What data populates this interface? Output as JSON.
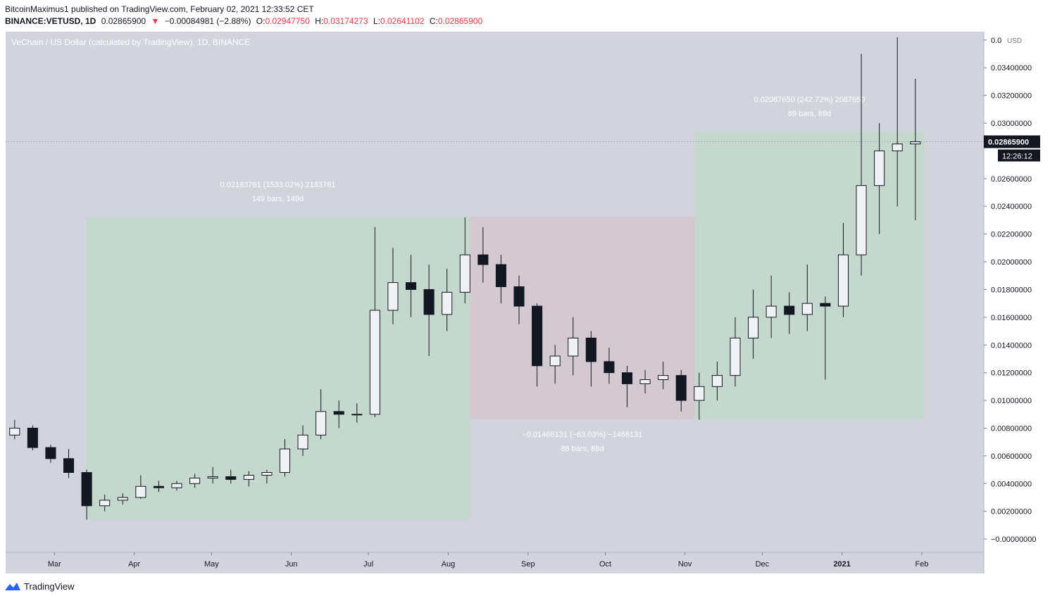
{
  "header": {
    "line1": "BitcoinMaximus1 published on TradingView.com, February 02, 2021 12:33:52 CET",
    "symbol": "BINANCE:VETUSD, 1D",
    "last": "0.02865900",
    "arrow": "▼",
    "change": "−0.00084981 (−2.88%)",
    "o_label": "O:",
    "o": "0.02947750",
    "h_label": "H:",
    "h": "0.03174273",
    "l_label": "L:",
    "l": "0.02641102",
    "c_label": "C:",
    "c": "0.02865900"
  },
  "footer": "TradingView",
  "chart_data": {
    "type": "candlestick",
    "title": "VeChain / US Dollar (calculated by TradingView), 1D, BINANCE",
    "currency": "USD",
    "xlim": [
      -0.5,
      53.8
    ],
    "xticks": [
      {
        "value": 2.21,
        "label": "Mar"
      },
      {
        "value": 6.64,
        "label": "Apr"
      },
      {
        "value": 10.93,
        "label": "May"
      },
      {
        "value": 15.36,
        "label": "Jun"
      },
      {
        "value": 19.64,
        "label": "Jul"
      },
      {
        "value": 24.07,
        "label": "Aug"
      },
      {
        "value": 28.5,
        "label": "Sep"
      },
      {
        "value": 32.79,
        "label": "Oct"
      },
      {
        "value": 37.21,
        "label": "Nov"
      },
      {
        "value": 41.5,
        "label": "Dec"
      },
      {
        "value": 45.93,
        "label": "2021"
      },
      {
        "value": 50.36,
        "label": "Feb"
      }
    ],
    "ylim": [
      -0.00096,
      0.0366
    ],
    "yticks": [
      {
        "value": 0,
        "label": "−0.00000000"
      },
      {
        "value": 0.002,
        "label": "0.00200000"
      },
      {
        "value": 0.004,
        "label": "0.00400000"
      },
      {
        "value": 0.006,
        "label": "0.00600000"
      },
      {
        "value": 0.008,
        "label": "0.00800000"
      },
      {
        "value": 0.01,
        "label": "0.01000000"
      },
      {
        "value": 0.012,
        "label": "0.01200000"
      },
      {
        "value": 0.014,
        "label": "0.01400000"
      },
      {
        "value": 0.016,
        "label": "0.01600000"
      },
      {
        "value": 0.018,
        "label": "0.01800000"
      },
      {
        "value": 0.02,
        "label": "0.02000000"
      },
      {
        "value": 0.022,
        "label": "0.02200000"
      },
      {
        "value": 0.024,
        "label": "0.02400000"
      },
      {
        "value": 0.026,
        "label": "0.02600000"
      },
      {
        "value": 0.03,
        "label": "0.03000000"
      },
      {
        "value": 0.032,
        "label": "0.03200000"
      },
      {
        "value": 0.034,
        "label": "0.03400000"
      },
      {
        "value": 0.036,
        "label": "0.0"
      }
    ],
    "up_color": "#f0f1f4",
    "down_color": "#131722",
    "open": [
      0.0075,
      0.008,
      0.0066,
      0.0058,
      0.0048,
      0.0024,
      0.0028,
      0.003,
      0.0038,
      0.0037,
      0.004,
      0.0044,
      0.0045,
      0.0043,
      0.0046,
      0.0048,
      0.0065,
      0.0075,
      0.0092,
      0.009,
      0.009,
      0.0165,
      0.0185,
      0.018,
      0.0162,
      0.0178,
      0.0205,
      0.0198,
      0.0182,
      0.0168,
      0.0125,
      0.0132,
      0.0145,
      0.0128,
      0.012,
      0.0112,
      0.0115,
      0.0118,
      0.01,
      0.011,
      0.0118,
      0.0145,
      0.016,
      0.0168,
      0.0162,
      0.017,
      0.0168,
      0.0205,
      0.0255,
      0.028,
      0.0285
    ],
    "high": [
      0.0086,
      0.0082,
      0.0068,
      0.0065,
      0.005,
      0.0032,
      0.0033,
      0.0046,
      0.0042,
      0.0042,
      0.0047,
      0.0052,
      0.005,
      0.0049,
      0.005,
      0.0072,
      0.0082,
      0.0108,
      0.01,
      0.0098,
      0.0225,
      0.021,
      0.0205,
      0.0198,
      0.0195,
      0.0232,
      0.0225,
      0.0205,
      0.019,
      0.017,
      0.014,
      0.016,
      0.015,
      0.0138,
      0.0125,
      0.0122,
      0.0128,
      0.0122,
      0.012,
      0.0128,
      0.016,
      0.018,
      0.019,
      0.0178,
      0.0198,
      0.0175,
      0.0228,
      0.035,
      0.03,
      0.0362,
      0.0332
    ],
    "low": [
      0.0072,
      0.0064,
      0.0055,
      0.0044,
      0.0014,
      0.002,
      0.0025,
      0.0029,
      0.0034,
      0.0035,
      0.0037,
      0.004,
      0.004,
      0.0038,
      0.004,
      0.0045,
      0.006,
      0.0072,
      0.008,
      0.0084,
      0.0088,
      0.0155,
      0.016,
      0.0132,
      0.015,
      0.017,
      0.0185,
      0.017,
      0.0155,
      0.011,
      0.0112,
      0.0118,
      0.011,
      0.0112,
      0.0095,
      0.0105,
      0.0108,
      0.0092,
      0.0086,
      0.01,
      0.011,
      0.013,
      0.0145,
      0.0148,
      0.015,
      0.0115,
      0.016,
      0.019,
      0.022,
      0.024,
      0.023
    ],
    "close": [
      0.008,
      0.0066,
      0.0058,
      0.0048,
      0.0024,
      0.0028,
      0.003,
      0.0038,
      0.0037,
      0.004,
      0.0044,
      0.0045,
      0.0043,
      0.0046,
      0.0048,
      0.0065,
      0.0075,
      0.0092,
      0.009,
      0.009,
      0.0165,
      0.0185,
      0.018,
      0.0162,
      0.0178,
      0.0205,
      0.0198,
      0.0182,
      0.0168,
      0.0125,
      0.0132,
      0.0145,
      0.0128,
      0.012,
      0.0112,
      0.0115,
      0.0118,
      0.01,
      0.011,
      0.0118,
      0.0145,
      0.016,
      0.0168,
      0.0162,
      0.017,
      0.0168,
      0.0205,
      0.0255,
      0.028,
      0.0285,
      0.028659
    ],
    "measures": [
      {
        "x_from": 3.96,
        "x_to": 25.26,
        "low": 0.00142,
        "high": 0.02326,
        "color": "#c5d8cd",
        "text1": "0.02183781 (1533.02%) 2183781",
        "text2": "149 bars, 149d",
        "text_pos": "top"
      },
      {
        "x_from": 25.26,
        "x_to": 37.77,
        "low": 0.00863,
        "high": 0.02326,
        "color": "#d4c9d1",
        "text1": "−0.01466131 (−63.03%) −1466131",
        "text2": "88 bars, 88d",
        "text_pos": "bottom"
      },
      {
        "x_from": 37.77,
        "x_to": 50.48,
        "low": 0.00863,
        "high": 0.02939,
        "color": "#c5d8cd",
        "text1": "0.02087650 (242.72%) 2087650",
        "text2": "89 bars, 89d",
        "text_pos": "top"
      }
    ],
    "last_price": {
      "value": 0.028659,
      "label": "0.02865900"
    },
    "countdown": "12:26:12",
    "background": "#d1d4dc"
  }
}
